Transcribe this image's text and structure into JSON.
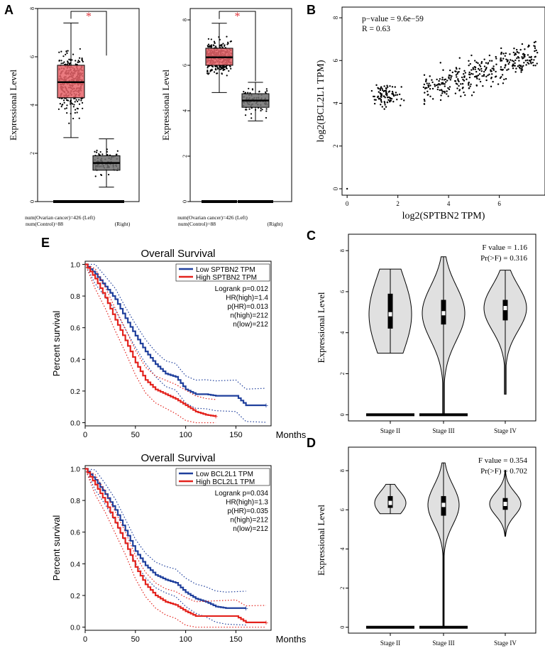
{
  "panel_labels": {
    "a": "A",
    "b": "B",
    "c": "C",
    "d": "D",
    "e": "E"
  },
  "colors": {
    "tumor": "#e8646a",
    "normal": "#6e6e6e",
    "sig": "#e0353b",
    "low": "#1f3f9c",
    "high": "#e3231d",
    "violin": "#e0e0e0"
  },
  "chart_data": [
    {
      "id": "A1",
      "type": "box",
      "ylabel": "Expressional Level",
      "ylim": [
        0,
        8
      ],
      "yticks": [
        0,
        2,
        4,
        6,
        8
      ],
      "significance": "*",
      "boxes": [
        {
          "name": "Ovarian cancer",
          "q1": 4.3,
          "median": 4.95,
          "q3": 5.65,
          "whisker_low": 2.65,
          "whisker_high": 7.4,
          "n": 426
        },
        {
          "name": "Control",
          "q1": 1.3,
          "median": 1.6,
          "q3": 1.9,
          "whisker_low": 0.6,
          "whisker_high": 2.6,
          "n": 88
        }
      ],
      "footnote": [
        "num(Ovarian cancer)=426 (Left)",
        "num(Control)=88",
        "(Right)"
      ]
    },
    {
      "id": "A2",
      "type": "box",
      "ylabel": "Expressional Level",
      "ylim": [
        0,
        8.5
      ],
      "yticks": [
        0,
        2,
        4,
        6,
        8
      ],
      "significance": "*",
      "boxes": [
        {
          "name": "Ovarian cancer",
          "q1": 6.0,
          "median": 6.35,
          "q3": 6.75,
          "whisker_low": 4.8,
          "whisker_high": 7.85,
          "n": 426
        },
        {
          "name": "Control",
          "q1": 4.15,
          "median": 4.45,
          "q3": 4.75,
          "whisker_low": 3.55,
          "whisker_high": 5.25,
          "n": 88
        }
      ],
      "footnote": [
        "num(Ovarian cancer)=426 (Left)",
        "num(Control)=88",
        "(Right)"
      ]
    },
    {
      "id": "B",
      "type": "scatter",
      "xlabel": "log2(SPTBN2 TPM)",
      "ylabel": "log2(BCL2L1 TPM)",
      "xlim": [
        -0.2,
        7.8
      ],
      "ylim": [
        -0.3,
        8.5
      ],
      "xticks": [
        0,
        2,
        4,
        6
      ],
      "yticks": [
        0,
        2,
        4,
        6,
        8
      ],
      "annotations": [
        "p−value = 9.6e−59",
        "R = 0.63"
      ]
    },
    {
      "id": "C",
      "type": "violin",
      "ylabel": "Expressional Level",
      "ylim": [
        -0.3,
        8.8
      ],
      "yticks": [
        0,
        2,
        4,
        6,
        8
      ],
      "categories": [
        "Stage II",
        "Stage III",
        "Stage IV"
      ],
      "annotations": [
        "F value = 1.16",
        "Pr(>F) = 0.316"
      ],
      "stages": [
        {
          "name": "Stage II",
          "min": 3.0,
          "max": 7.1,
          "q1": 4.2,
          "median": 4.9,
          "q3": 5.9
        },
        {
          "name": "Stage III",
          "min": 0.0,
          "max": 7.7,
          "q1": 4.4,
          "median": 4.95,
          "q3": 5.6
        },
        {
          "name": "Stage IV",
          "min": 1.0,
          "max": 7.05,
          "q1": 4.6,
          "median": 5.2,
          "q3": 5.6
        }
      ]
    },
    {
      "id": "D",
      "type": "violin",
      "ylabel": "Expressional Level",
      "ylim": [
        -0.3,
        9.2
      ],
      "yticks": [
        0,
        2,
        4,
        6,
        8
      ],
      "categories": [
        "Stage II",
        "Stage III",
        "Stage IV"
      ],
      "annotations": [
        "F value = 0.354",
        "Pr(>F) = 0.702"
      ],
      "stages": [
        {
          "name": "Stage II",
          "min": 5.8,
          "max": 7.3,
          "q1": 6.1,
          "median": 6.35,
          "q3": 6.7
        },
        {
          "name": "Stage III",
          "min": 0.0,
          "max": 8.4,
          "q1": 5.7,
          "median": 6.25,
          "q3": 6.7
        },
        {
          "name": "Stage IV",
          "min": 4.65,
          "max": 8.0,
          "q1": 6.0,
          "median": 6.3,
          "q3": 6.6
        }
      ]
    },
    {
      "id": "E1",
      "type": "line",
      "title": "Overall Survival",
      "xlabel": "Months",
      "ylabel": "Percent survival",
      "xlim": [
        0,
        185
      ],
      "ylim": [
        -0.02,
        1.02
      ],
      "xticks": [
        0,
        50,
        100,
        150
      ],
      "yticks": [
        0,
        0.2,
        0.4,
        0.6,
        0.8,
        1.0
      ],
      "legend": [
        "Low SPTBN2 TPM",
        "High SPTBN2 TPM"
      ],
      "stats": [
        "Logrank p=0.012",
        "HR(high)=1.4",
        "p(HR)=0.013",
        "n(high)=212",
        "n(low)=212"
      ],
      "series": [
        {
          "name": "Low SPTBN2 TPM",
          "x": [
            0,
            10,
            20,
            30,
            40,
            50,
            60,
            70,
            80,
            90,
            100,
            110,
            120,
            130,
            140,
            150,
            160,
            170,
            180
          ],
          "y": [
            1.0,
            0.94,
            0.86,
            0.78,
            0.66,
            0.55,
            0.45,
            0.37,
            0.31,
            0.29,
            0.21,
            0.18,
            0.18,
            0.17,
            0.17,
            0.17,
            0.11,
            0.11,
            0.11
          ]
        },
        {
          "name": "High SPTBN2 TPM",
          "x": [
            0,
            10,
            20,
            30,
            40,
            50,
            60,
            70,
            80,
            90,
            100,
            110,
            120,
            130
          ],
          "y": [
            1.0,
            0.91,
            0.79,
            0.65,
            0.52,
            0.38,
            0.27,
            0.21,
            0.18,
            0.15,
            0.11,
            0.07,
            0.05,
            0.04
          ]
        }
      ]
    },
    {
      "id": "E2",
      "type": "line",
      "title": "Overall Survival",
      "xlabel": "Months",
      "ylabel": "Percent survival",
      "xlim": [
        0,
        185
      ],
      "ylim": [
        -0.02,
        1.02
      ],
      "xticks": [
        0,
        50,
        100,
        150
      ],
      "yticks": [
        0,
        0.2,
        0.4,
        0.6,
        0.8,
        1.0
      ],
      "legend": [
        "Low BCL2L1 TPM",
        "High BCL2L1 TPM"
      ],
      "stats": [
        "Logrank p=0.034",
        "HR(high)=1.3",
        "p(HR)=0.035",
        "n(high)=212",
        "n(low)=212"
      ],
      "series": [
        {
          "name": "Low BCL2L1 TPM",
          "x": [
            0,
            10,
            20,
            30,
            40,
            50,
            60,
            70,
            80,
            90,
            100,
            110,
            120,
            130,
            140,
            150,
            160
          ],
          "y": [
            1.0,
            0.93,
            0.84,
            0.74,
            0.61,
            0.48,
            0.39,
            0.33,
            0.3,
            0.28,
            0.22,
            0.18,
            0.16,
            0.13,
            0.12,
            0.12,
            0.12
          ]
        },
        {
          "name": "High BCL2L1 TPM",
          "x": [
            0,
            10,
            20,
            30,
            40,
            50,
            60,
            70,
            80,
            90,
            100,
            110,
            120,
            130,
            140,
            150,
            160,
            180
          ],
          "y": [
            1.0,
            0.9,
            0.79,
            0.66,
            0.53,
            0.38,
            0.27,
            0.2,
            0.16,
            0.14,
            0.1,
            0.07,
            0.07,
            0.07,
            0.07,
            0.07,
            0.03,
            0.03
          ]
        }
      ]
    }
  ]
}
